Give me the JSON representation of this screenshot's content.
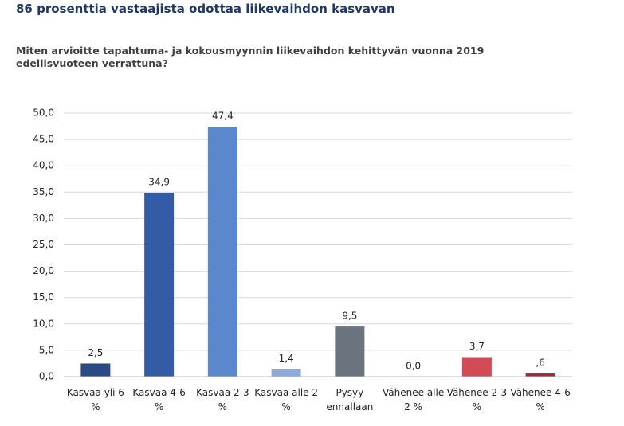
{
  "chart_data": {
    "type": "bar",
    "title": "86 prosenttia vastaajista odottaa liikevaihdon kasvavan",
    "subtitle": "Miten arvioitte tapahtuma-  ja kokousmyynnin liikevaihdon kehittyvän vuonna 2019 edellisvuoteen verrattuna?",
    "categories": [
      "Kasvaa yli 6 %",
      "Kasvaa 4-6 %",
      "Kasvaa 2-3 %",
      "Kasvaa alle 2 %",
      "Pysyy ennallaan",
      "Vähenee alle 2 %",
      "Vähenee 2-3 %",
      "Vähenee 4-6 %"
    ],
    "values": [
      2.5,
      34.9,
      47.4,
      1.4,
      9.5,
      0.0,
      3.7,
      0.6
    ],
    "value_labels": [
      "2,5",
      "34,9",
      "47,4",
      "1,4",
      "9,5",
      "0,0",
      "3,7",
      ",6"
    ],
    "colors": [
      "#2b4a86",
      "#345ca6",
      "#5b87cc",
      "#8eaadc",
      "#6b737e",
      "#c9c9c9",
      "#d04b56",
      "#9a2d38"
    ],
    "ylim": [
      0,
      50
    ],
    "yticks": [
      {
        "value": 0,
        "label": "0,0"
      },
      {
        "value": 5,
        "label": "5,0"
      },
      {
        "value": 10,
        "label": "10,0"
      },
      {
        "value": 15,
        "label": "15,0"
      },
      {
        "value": 20,
        "label": "20,0"
      },
      {
        "value": 25,
        "label": "25,0"
      },
      {
        "value": 30,
        "label": "30,0"
      },
      {
        "value": 35,
        "label": "35,0"
      },
      {
        "value": 40,
        "label": "40,0"
      },
      {
        "value": 45,
        "label": "45,0"
      },
      {
        "value": 50,
        "label": "50,0"
      }
    ],
    "grid": true
  }
}
